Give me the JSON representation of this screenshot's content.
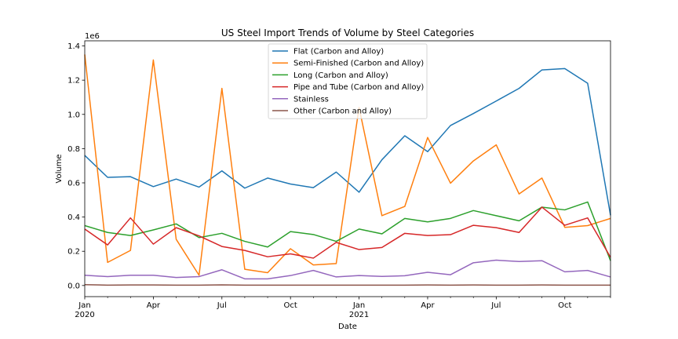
{
  "chart_data": {
    "type": "line",
    "title": "US Steel Import Trends of Volume by Steel Categories",
    "xlabel": "Date",
    "ylabel": "Volume",
    "y_offset_text": "1e6",
    "ylim": [
      -65000,
      1430000
    ],
    "y_ticks": [
      {
        "value": 0,
        "label": "0.0"
      },
      {
        "value": 200000,
        "label": "0.2"
      },
      {
        "value": 400000,
        "label": "0.4"
      },
      {
        "value": 600000,
        "label": "0.6"
      },
      {
        "value": 800000,
        "label": "0.8"
      },
      {
        "value": 1000000,
        "label": "1.0"
      },
      {
        "value": 1200000,
        "label": "1.2"
      },
      {
        "value": 1400000,
        "label": "1.4"
      }
    ],
    "x": [
      "2020-01",
      "2020-02",
      "2020-03",
      "2020-04",
      "2020-05",
      "2020-06",
      "2020-07",
      "2020-08",
      "2020-09",
      "2020-10",
      "2020-11",
      "2020-12",
      "2021-01",
      "2021-02",
      "2021-03",
      "2021-04",
      "2021-05",
      "2021-06",
      "2021-07",
      "2021-08",
      "2021-09",
      "2021-10",
      "2021-11",
      "2021-12"
    ],
    "x_ticks": [
      {
        "value": "2020-01",
        "label": "Jan",
        "sublabel": "2020"
      },
      {
        "value": "2020-04",
        "label": "Apr",
        "sublabel": ""
      },
      {
        "value": "2020-07",
        "label": "Jul",
        "sublabel": ""
      },
      {
        "value": "2020-10",
        "label": "Oct",
        "sublabel": ""
      },
      {
        "value": "2021-01",
        "label": "Jan",
        "sublabel": "2021"
      },
      {
        "value": "2021-04",
        "label": "Apr",
        "sublabel": ""
      },
      {
        "value": "2021-07",
        "label": "Jul",
        "sublabel": ""
      },
      {
        "value": "2021-10",
        "label": "Oct",
        "sublabel": ""
      }
    ],
    "grid": false,
    "legend_position": "top-center",
    "series": [
      {
        "name": "Flat (Carbon and Alloy)",
        "color": "#1f77b4",
        "values": [
          760000,
          632000,
          636000,
          578000,
          622000,
          575000,
          670000,
          569000,
          628000,
          593000,
          572000,
          663000,
          545000,
          735000,
          875000,
          782000,
          935000,
          1005000,
          1078000,
          1152000,
          1260000,
          1268000,
          1182000,
          410000
        ]
      },
      {
        "name": "Semi-Finished (Carbon and Alloy)",
        "color": "#ff7f0e",
        "values": [
          1350000,
          135000,
          205000,
          1318000,
          270000,
          60000,
          1152000,
          95000,
          75000,
          215000,
          120000,
          128000,
          1040000,
          408000,
          462000,
          865000,
          598000,
          728000,
          822000,
          535000,
          628000,
          340000,
          350000,
          392000
        ]
      },
      {
        "name": "Long (Carbon and Alloy)",
        "color": "#2ca02c",
        "values": [
          350000,
          310000,
          292000,
          325000,
          360000,
          280000,
          305000,
          258000,
          225000,
          315000,
          298000,
          258000,
          330000,
          302000,
          392000,
          372000,
          392000,
          438000,
          408000,
          378000,
          458000,
          442000,
          488000,
          145000
        ]
      },
      {
        "name": "Pipe and Tube (Carbon and Alloy)",
        "color": "#d62728",
        "values": [
          330000,
          237000,
          395000,
          242000,
          338000,
          290000,
          228000,
          205000,
          168000,
          185000,
          160000,
          252000,
          210000,
          222000,
          305000,
          292000,
          297000,
          352000,
          338000,
          310000,
          458000,
          352000,
          395000,
          165000
        ]
      },
      {
        "name": "Stainless",
        "color": "#9467bd",
        "values": [
          60000,
          52000,
          60000,
          60000,
          47000,
          52000,
          92000,
          39000,
          39000,
          58000,
          88000,
          50000,
          58000,
          53000,
          57000,
          77000,
          63000,
          133000,
          148000,
          140000,
          145000,
          80000,
          88000,
          50000
        ]
      },
      {
        "name": "Other (Carbon and Alloy)",
        "color": "#8c564b",
        "values": [
          5000,
          2000,
          3000,
          3000,
          2000,
          2000,
          4000,
          2000,
          2000,
          2000,
          2000,
          2000,
          2000,
          2000,
          2000,
          3000,
          2000,
          3000,
          2000,
          2000,
          3000,
          2000,
          2000,
          2000
        ]
      }
    ]
  }
}
